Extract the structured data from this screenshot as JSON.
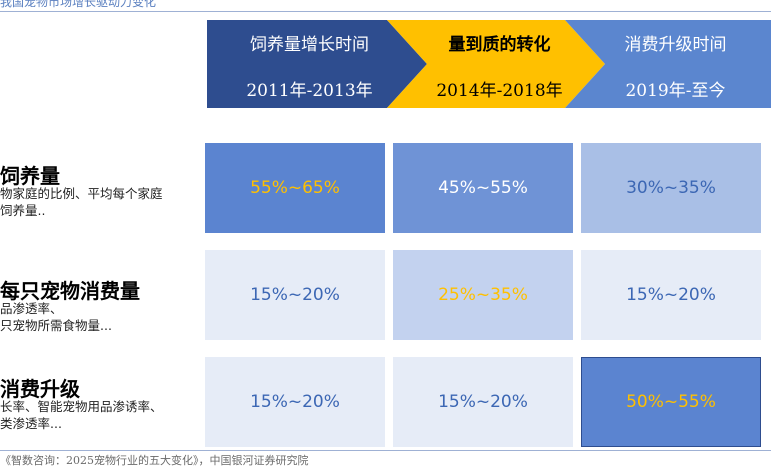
{
  "title": "我国宠物市场增长驱动力变化",
  "phases": [
    {
      "name": "饲养量增长时间",
      "period": "2011年-2013年",
      "fill": "#2e4d8f",
      "text_color": "#ffffff"
    },
    {
      "name": "量到质的转化",
      "period": "2014年-2018年",
      "fill": "#ffc000",
      "text_color": "#000000"
    },
    {
      "name": "消费升级时间",
      "period": "2019年-至今",
      "fill": "#5b86cf",
      "text_color": "#ffffff"
    }
  ],
  "rows": [
    {
      "heading": "饲养量",
      "desc": [
        "物家庭的比例、平均每个家庭",
        "饲养量.."
      ]
    },
    {
      "heading": "每只宠物消费量",
      "desc": [
        "品渗透率、",
        "只宠物所需食物量..."
      ]
    },
    {
      "heading": "消费升级",
      "desc": [
        "长率、智能宠物用品渗诱率、",
        "类渗透率..."
      ]
    }
  ],
  "cells": [
    [
      {
        "text": "55%~65%",
        "bg": "#5b84d0",
        "color": "#ffc000"
      },
      {
        "text": "45%~55%",
        "bg": "#6f93d6",
        "color": "#ffffff"
      },
      {
        "text": "30%~35%",
        "bg": "#a9bfe6",
        "color": "#3c67b4"
      }
    ],
    [
      {
        "text": "15%~20%",
        "bg": "#e6ecf7",
        "color": "#3c67b4"
      },
      {
        "text": "25%~35%",
        "bg": "#c3d2ef",
        "color": "#ffc000"
      },
      {
        "text": "15%~20%",
        "bg": "#e6ecf7",
        "color": "#3c67b4"
      }
    ],
    [
      {
        "text": "15%~20%",
        "bg": "#e6ecf7",
        "color": "#3c67b4"
      },
      {
        "text": "15%~20%",
        "bg": "#e6ecf7",
        "color": "#3c67b4"
      },
      {
        "text": "50%~55%",
        "bg": "#5b84d0",
        "color": "#ffc000"
      }
    ]
  ],
  "source": "《智数咨询：2025宠物行业的五大变化》，中国银河证券研究院"
}
